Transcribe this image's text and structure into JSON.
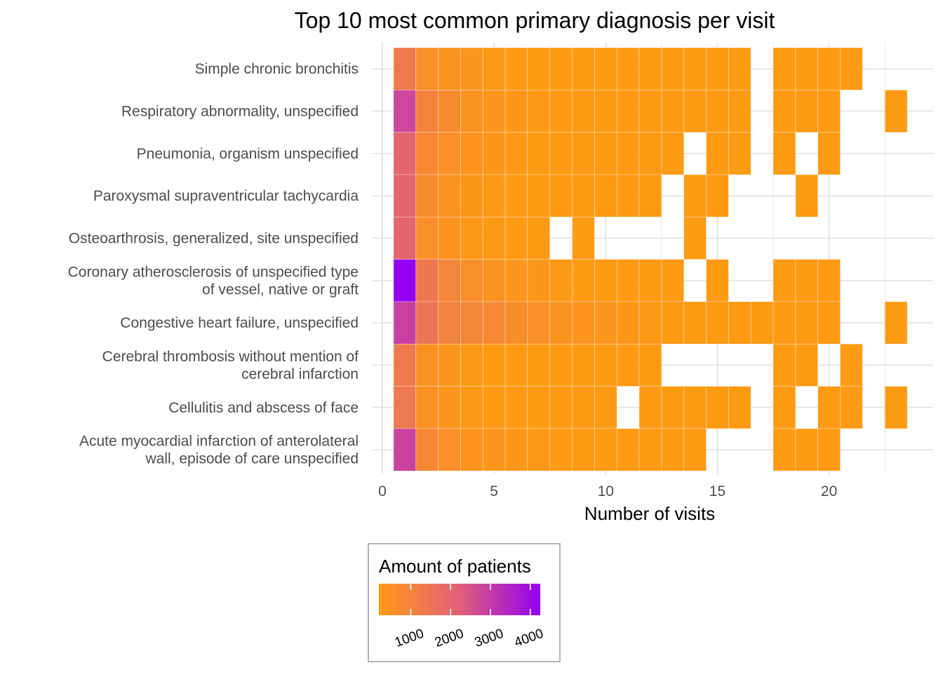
{
  "chart_data": {
    "type": "heatmap",
    "title": "Top 10 most common primary diagnosis per visit",
    "xlabel": "Number of visits",
    "ylabel": "",
    "xlim": [
      0,
      24
    ],
    "x_ticks": [
      "0",
      "5",
      "10",
      "15",
      "20"
    ],
    "grid": true,
    "legend": {
      "title": "Amount of patients",
      "placement": "bottom",
      "min": 200,
      "max": 4250,
      "ticks": [
        "1000",
        "2000",
        "3000",
        "4000"
      ],
      "low_color": "#ff9a14",
      "mid_color": "#e0607a",
      "high_color": "#9400f0"
    },
    "categories": [
      "Simple chronic bronchitis",
      "Respiratory abnormality, unspecified",
      "Pneumonia, organism unspecified",
      "Paroxysmal supraventricular tachycardia",
      "Osteoarthrosis, generalized, site unspecified",
      "Coronary atherosclerosis of unspecified type of vessel, native or graft",
      "Congestive heart failure, unspecified",
      "Cerebral thrombosis without mention of cerebral infarction",
      "Cellulitis and abscess of face",
      "Acute myocardial infarction of anterolateral wall, episode of care unspecified"
    ],
    "category_labels": [
      [
        "Simple chronic bronchitis"
      ],
      [
        "Respiratory abnormality, unspecified"
      ],
      [
        "Pneumonia, organism unspecified"
      ],
      [
        "Paroxysmal supraventricular tachycardia"
      ],
      [
        "Osteoarthrosis, generalized, site unspecified"
      ],
      [
        "Coronary atherosclerosis of unspecified type",
        "of vessel, native or graft"
      ],
      [
        "Congestive heart failure, unspecified"
      ],
      [
        "Cerebral thrombosis without mention of",
        "cerebral infarction"
      ],
      [
        "Cellulitis and abscess of face"
      ],
      [
        "Acute myocardial infarction of anterolateral",
        "wall, episode of care unspecified"
      ]
    ],
    "series": [
      {
        "name": "Simple chronic bronchitis",
        "x": [
          1,
          2,
          3,
          4,
          5,
          6,
          7,
          8,
          9,
          10,
          11,
          12,
          13,
          14,
          15,
          16,
          18,
          19,
          20,
          21
        ],
        "values": [
          1300,
          600,
          450,
          350,
          250,
          200,
          200,
          200,
          200,
          200,
          200,
          200,
          200,
          200,
          200,
          200,
          200,
          200,
          200,
          200
        ]
      },
      {
        "name": "Respiratory abnormality, unspecified",
        "x": [
          1,
          2,
          3,
          4,
          5,
          6,
          7,
          8,
          9,
          10,
          11,
          12,
          13,
          14,
          15,
          16,
          18,
          19,
          20,
          23
        ],
        "values": [
          2750,
          1000,
          700,
          450,
          350,
          300,
          250,
          200,
          200,
          200,
          200,
          200,
          200,
          200,
          200,
          200,
          200,
          200,
          200,
          200
        ]
      },
      {
        "name": "Pneumonia, organism unspecified",
        "x": [
          1,
          2,
          3,
          4,
          5,
          6,
          7,
          8,
          9,
          10,
          11,
          12,
          13,
          15,
          16,
          18,
          20
        ],
        "values": [
          2000,
          800,
          550,
          400,
          300,
          250,
          200,
          200,
          200,
          200,
          200,
          200,
          200,
          200,
          200,
          200,
          200
        ]
      },
      {
        "name": "Paroxysmal supraventricular tachycardia",
        "x": [
          1,
          2,
          3,
          4,
          5,
          6,
          7,
          8,
          9,
          10,
          11,
          12,
          14,
          15,
          19
        ],
        "values": [
          2000,
          700,
          450,
          300,
          250,
          200,
          200,
          200,
          200,
          200,
          200,
          200,
          200,
          200,
          200
        ]
      },
      {
        "name": "Osteoarthrosis, generalized, site unspecified",
        "x": [
          1,
          2,
          3,
          4,
          5,
          6,
          7,
          9,
          14
        ],
        "values": [
          2000,
          600,
          400,
          250,
          250,
          200,
          200,
          200,
          200
        ]
      },
      {
        "name": "Coronary atherosclerosis of unspecified type of vessel, native or graft",
        "x": [
          1,
          2,
          3,
          4,
          5,
          6,
          7,
          8,
          9,
          10,
          11,
          12,
          13,
          15,
          18,
          19,
          20
        ],
        "values": [
          4250,
          1400,
          900,
          600,
          450,
          350,
          300,
          250,
          200,
          200,
          200,
          200,
          200,
          200,
          200,
          200,
          200
        ]
      },
      {
        "name": "Congestive heart failure, unspecified",
        "x": [
          1,
          2,
          3,
          4,
          5,
          6,
          7,
          8,
          9,
          10,
          11,
          12,
          13,
          14,
          15,
          16,
          17,
          18,
          19,
          20,
          23
        ],
        "values": [
          2900,
          1500,
          1050,
          900,
          800,
          650,
          550,
          450,
          400,
          350,
          300,
          250,
          200,
          200,
          200,
          200,
          200,
          200,
          200,
          200,
          200
        ]
      },
      {
        "name": "Cerebral thrombosis without mention of cerebral infarction",
        "x": [
          1,
          2,
          3,
          4,
          5,
          6,
          7,
          8,
          9,
          10,
          11,
          12,
          18,
          19,
          21
        ],
        "values": [
          1300,
          500,
          350,
          250,
          200,
          200,
          200,
          200,
          200,
          200,
          200,
          200,
          200,
          200,
          200
        ]
      },
      {
        "name": "Cellulitis and abscess of face",
        "x": [
          1,
          2,
          3,
          4,
          5,
          6,
          7,
          8,
          9,
          10,
          12,
          13,
          14,
          15,
          16,
          18,
          20,
          21,
          23
        ],
        "values": [
          1350,
          500,
          350,
          250,
          200,
          200,
          200,
          200,
          200,
          200,
          200,
          200,
          200,
          200,
          200,
          200,
          200,
          200,
          200
        ]
      },
      {
        "name": "Acute myocardial infarction of anterolateral wall, episode of care unspecified",
        "x": [
          1,
          2,
          3,
          4,
          5,
          6,
          7,
          8,
          9,
          10,
          11,
          12,
          13,
          14,
          18,
          19,
          20
        ],
        "values": [
          2850,
          850,
          550,
          400,
          350,
          300,
          250,
          200,
          200,
          200,
          200,
          200,
          200,
          200,
          200,
          200,
          200
        ]
      }
    ]
  }
}
